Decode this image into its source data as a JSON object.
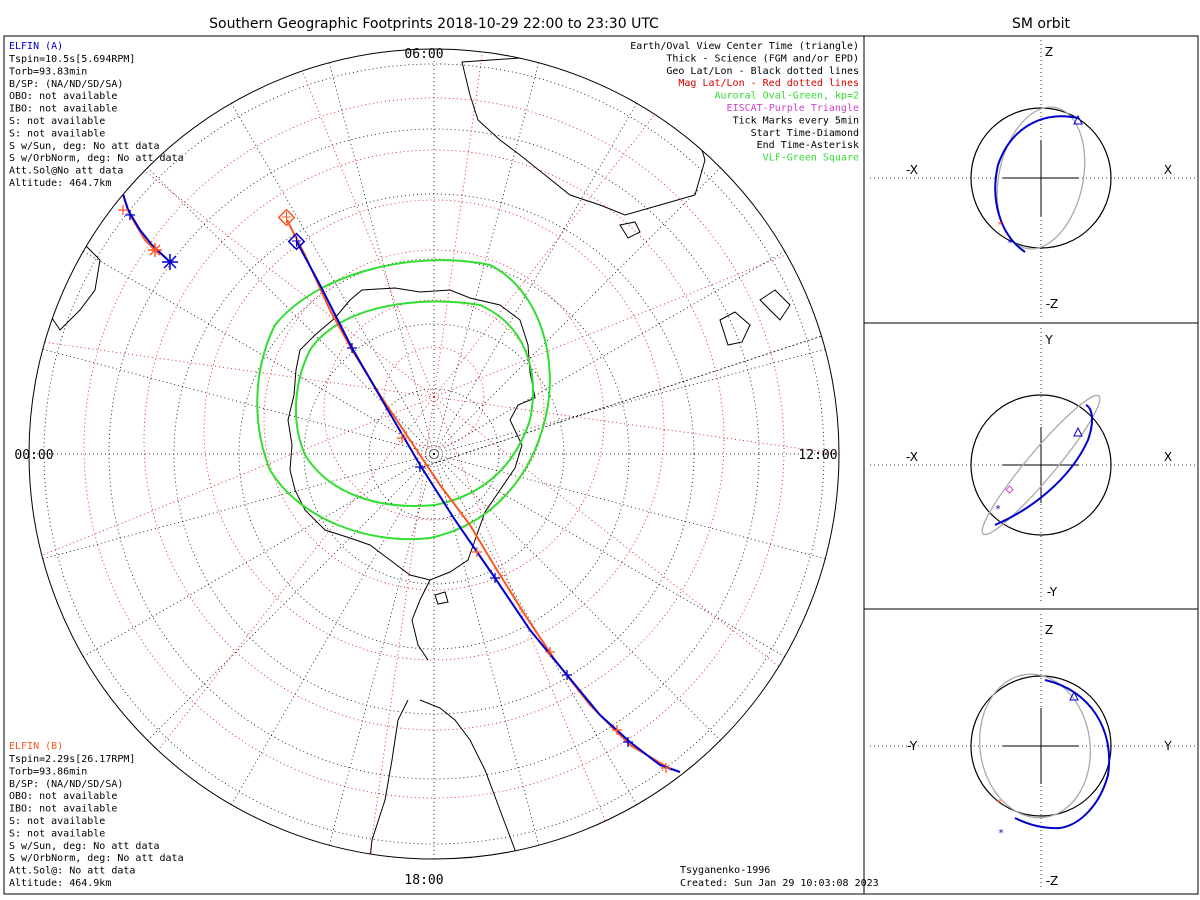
{
  "title": "Southern Geographic Footprints 2018-10-29 22:00 to 23:30 UTC",
  "side_title": "SM orbit",
  "hour_labels": {
    "top": "06:00",
    "left": "00:00",
    "right": "12:00",
    "bottom": "18:00"
  },
  "colors": {
    "elfin_a": "#0000cc",
    "elfin_b": "#ff5522",
    "geo_grid": "#000000",
    "mag_grid": "#dd0000",
    "oval": "#33dd33",
    "eiscat": "#cc44cc",
    "orbit_gray": "#aaaaaa"
  },
  "elfin_a": {
    "name": "ELFIN (A)",
    "lines": [
      "Tspin=10.5s[5.694RPM]",
      "Torb=93.83min",
      "B/SP: (NA/ND/SD/SA)",
      "OBO: not available",
      "IBO: not available",
      "S: not available",
      "S: not available",
      "S w/Sun, deg: No att data",
      "S w/OrbNorm, deg: No att data",
      "Att.Sol@No att data",
      "Altitude: 464.7km"
    ]
  },
  "elfin_b": {
    "name": "ELFIN (B)",
    "lines": [
      "Tspin=2.29s[26.17RPM]",
      "Torb=93.86min",
      "B/SP: (NA/ND/SD/SA)",
      "OBO: not available",
      "IBO: not available",
      "S: not available",
      "S: not available",
      "S w/Sun, deg: No att data",
      "S w/OrbNorm, deg: No att data",
      "Att.Sol@: No att data",
      "Altitude: 464.9km"
    ]
  },
  "legend": [
    {
      "text": "Earth/Oval View Center Time (triangle)",
      "color": "#000000"
    },
    {
      "text": "Thick - Science (FGM and/or EPD)",
      "color": "#000000"
    },
    {
      "text": "Geo Lat/Lon - Black dotted lines",
      "color": "#000000"
    },
    {
      "text": "Mag Lat/Lon - Red dotted lines",
      "color": "#dd0000"
    },
    {
      "text": "Auroral Oval-Green, kp=2",
      "color": "#33dd33"
    },
    {
      "text": "EISCAT-Purple Triangle",
      "color": "#cc44cc"
    },
    {
      "text": "Tick Marks every 5min",
      "color": "#000000"
    },
    {
      "text": "Start Time-Diamond",
      "color": "#000000"
    },
    {
      "text": "End Time-Asterisk",
      "color": "#000000"
    },
    {
      "text": "VLF-Green Square",
      "color": "#33dd33"
    }
  ],
  "model_note": "Tsyganenko-1996",
  "created": "Created: Sun Jan 29 10:03:08 2023",
  "panels": [
    {
      "top": "Z",
      "bottom": "-Z",
      "left": "-X",
      "right": "X"
    },
    {
      "top": "Y",
      "bottom": "-Y",
      "left": "-X",
      "right": "X"
    },
    {
      "top": "Z",
      "bottom": "-Z",
      "left": "-Y",
      "right": "Y"
    }
  ]
}
